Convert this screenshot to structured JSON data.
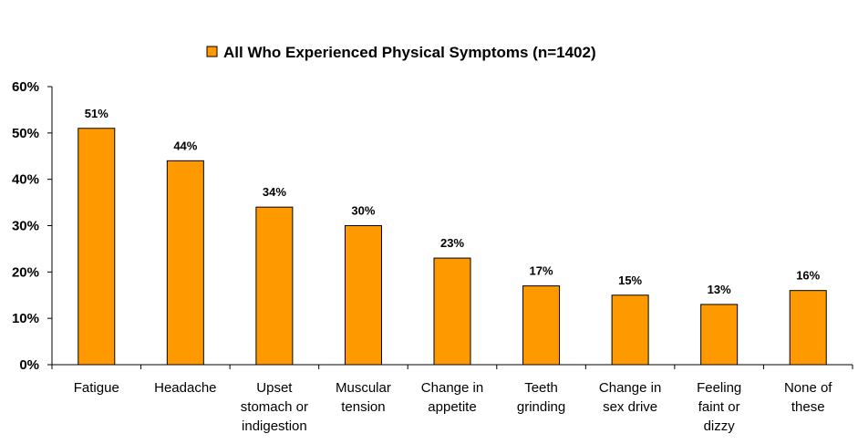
{
  "colors": {
    "bar": "#FF9900",
    "bar_stroke": "#000000",
    "axis": "#000000"
  },
  "chart_data": {
    "type": "bar",
    "title": "",
    "xlabel": "",
    "ylabel": "",
    "legend": {
      "position": "top",
      "entries": [
        "All Who Experienced Physical Symptoms (n=1402)"
      ]
    },
    "grid": false,
    "ylim": [
      0,
      60
    ],
    "yticks": [
      0,
      10,
      20,
      30,
      40,
      50,
      60
    ],
    "ytick_labels": [
      "0%",
      "10%",
      "20%",
      "30%",
      "40%",
      "50%",
      "60%"
    ],
    "categories": [
      [
        "Fatigue"
      ],
      [
        "Headache"
      ],
      [
        "Upset",
        "stomach or",
        "indigestion"
      ],
      [
        "Muscular",
        "tension"
      ],
      [
        "Change in",
        "appetite"
      ],
      [
        "Teeth",
        "grinding"
      ],
      [
        "Change in",
        "sex drive"
      ],
      [
        "Feeling",
        "faint or",
        "dizzy"
      ],
      [
        "None of",
        "these"
      ]
    ],
    "series": [
      {
        "name": "All Who Experienced Physical Symptoms (n=1402)",
        "values": [
          51,
          44,
          34,
          30,
          23,
          17,
          15,
          13,
          16
        ],
        "data_labels": [
          "51%",
          "44%",
          "34%",
          "30%",
          "23%",
          "17%",
          "15%",
          "13%",
          "16%"
        ]
      }
    ]
  }
}
